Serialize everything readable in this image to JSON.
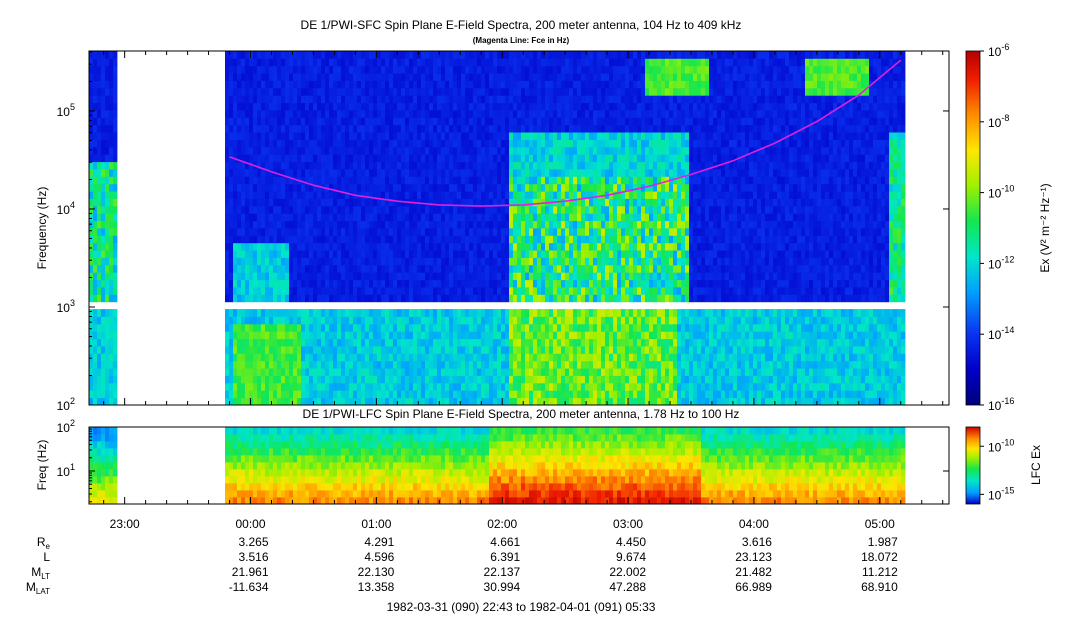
{
  "chart_data": [
    {
      "type": "heatmap",
      "title": "DE 1/PWI-SFC  Spin Plane E-Field Spectra, 200 meter antenna, 104 Hz to 409 kHz",
      "subtitle": "(Magenta Line: Fce in Hz)",
      "ylabel": "Frequency (Hz)",
      "yscale": "log",
      "ylim": [
        100,
        409000
      ],
      "y_ticks": [
        {
          "value": 100,
          "base": "10",
          "exp": "2"
        },
        {
          "value": 1000,
          "base": "10",
          "exp": "3"
        },
        {
          "value": 10000,
          "base": "10",
          "exp": "4"
        },
        {
          "value": 100000,
          "base": "10",
          "exp": "5"
        }
      ],
      "colorbar": {
        "label": "Ex (V² m⁻² Hz⁻¹)",
        "scale": "log",
        "range": [
          1e-16,
          1e-06
        ],
        "ticks": [
          {
            "value": 1e-06,
            "base": "10",
            "exp": "-6"
          },
          {
            "value": 1e-08,
            "base": "10",
            "exp": "-8"
          },
          {
            "value": 1e-10,
            "base": "10",
            "exp": "-10"
          },
          {
            "value": 1e-12,
            "base": "10",
            "exp": "-12"
          },
          {
            "value": 1e-14,
            "base": "10",
            "exp": "-14"
          },
          {
            "value": 1e-16,
            "base": "10",
            "exp": "-16"
          }
        ]
      },
      "data_gaps": [
        [
          "22:56",
          "23:47"
        ]
      ],
      "band_gap_hz": [
        890,
        1080
      ],
      "fce_line": {
        "color": "#e020e0",
        "times": [
          "23:50",
          "00:10",
          "00:30",
          "00:50",
          "01:10",
          "01:30",
          "01:50",
          "02:10",
          "02:30",
          "02:50",
          "03:10",
          "03:30",
          "03:50",
          "04:10",
          "04:30",
          "04:50",
          "05:10"
        ],
        "values_hz": [
          34000,
          24000,
          17500,
          13800,
          12000,
          11000,
          10700,
          11000,
          12000,
          13800,
          17000,
          22500,
          31000,
          47000,
          78000,
          145000,
          330000
        ]
      }
    },
    {
      "type": "heatmap",
      "title": "DE 1/PWI-LFC  Spin Plane E-Field Spectra, 200 meter antenna, 1.78 Hz to 100 Hz",
      "ylabel": "Freq (Hz)",
      "yscale": "log",
      "ylim": [
        1.78,
        100
      ],
      "y_ticks": [
        {
          "value": 10,
          "base": "10",
          "exp": "1"
        },
        {
          "value": 100,
          "base": "10",
          "exp": "2"
        }
      ],
      "colorbar": {
        "label": "LFC Ex",
        "scale": "log",
        "range": [
          1e-16,
          1e-08
        ],
        "ticks": [
          {
            "value": 1e-10,
            "base": "10",
            "exp": "-10"
          },
          {
            "value": 1e-15,
            "base": "10",
            "exp": "-15"
          }
        ]
      },
      "data_gaps": [
        [
          "22:56",
          "23:47"
        ]
      ]
    }
  ],
  "time_axis": {
    "start": "22:43",
    "end": "05:33",
    "tick_labels": [
      "23:00",
      "00:00",
      "01:00",
      "02:00",
      "03:00",
      "04:00",
      "05:00"
    ],
    "minor_tick_minutes": 10
  },
  "ephemeris": {
    "row_labels": [
      {
        "main": "R",
        "sub": "e"
      },
      {
        "main": "L",
        "sub": ""
      },
      {
        "main": "M",
        "sub": "LT"
      },
      {
        "main": "M",
        "sub": "LAT"
      }
    ],
    "columns": [
      {
        "time": "00:00",
        "values": [
          "3.265",
          "3.516",
          "21.961",
          "-11.634"
        ]
      },
      {
        "time": "01:00",
        "values": [
          "4.291",
          "4.596",
          "22.130",
          "13.358"
        ]
      },
      {
        "time": "02:00",
        "values": [
          "4.661",
          "6.391",
          "22.137",
          "30.994"
        ]
      },
      {
        "time": "03:00",
        "values": [
          "4.450",
          "9.674",
          "22.002",
          "47.288"
        ]
      },
      {
        "time": "04:00",
        "values": [
          "3.616",
          "23.123",
          "21.482",
          "66.989"
        ]
      },
      {
        "time": "05:00",
        "values": [
          "1.987",
          "18.072",
          "11.212",
          "68.910"
        ]
      }
    ]
  },
  "footer": "1982-03-31 (090) 22:43 to 1982-04-01 (091) 05:33",
  "colors": {
    "colormap": [
      "#00007a",
      "#0000c8",
      "#0a32f0",
      "#00a0ff",
      "#00e6c8",
      "#14e650",
      "#a0f000",
      "#ffe600",
      "#ff8c00",
      "#f01e00",
      "#b40000"
    ],
    "fce_line": "#e020e0"
  }
}
